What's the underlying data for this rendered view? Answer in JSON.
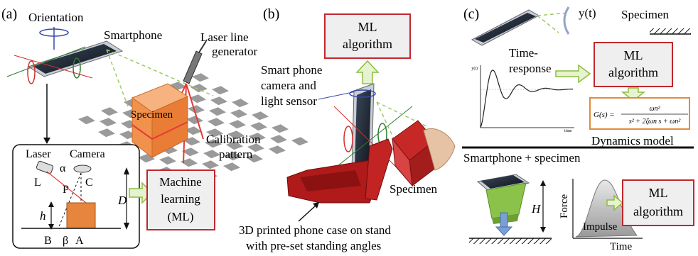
{
  "panel_a": {
    "label": "(a)",
    "orientation": "Orientation",
    "smartphone": "Smartphone",
    "laser_line_1": "Laser line",
    "laser_line_2": "generator",
    "specimen": "Specimen",
    "calibration_1": "Calibration",
    "calibration_2": "pattern",
    "inset": {
      "laser": "Laser",
      "camera": "Camera",
      "alpha": "α",
      "L": "L",
      "C": "C",
      "P": "P",
      "h": "h",
      "D": "D",
      "B": "B",
      "beta": "β",
      "A": "A"
    },
    "ml_box": [
      "Machine",
      "learning",
      "(ML)"
    ]
  },
  "panel_b": {
    "label": "(b)",
    "ml_box": [
      "ML",
      "algorithm"
    ],
    "camera_text": [
      "Smart phone",
      "camera and",
      "light sensor"
    ],
    "specimen": "Specimen",
    "caption": [
      "3D printed phone case on stand",
      "with pre-set standing angles"
    ]
  },
  "panel_c": {
    "label": "(c)",
    "yt": "y(t)",
    "specimen": "Specimen",
    "time_response": [
      "Time-",
      "response"
    ],
    "ml_box": [
      "ML",
      "algorithm"
    ],
    "transfer_function": "G(s) = ωn² / (s² + 2ζωn s + ωn²)",
    "tf_lhs": "G(s) =",
    "tf_num": "ωn²",
    "tf_den": "s² + 2ζωn s + ωn²",
    "dynamics_model": "Dynamics model",
    "plot_labels": {
      "y": "y(t)",
      "time": "time"
    }
  },
  "panel_d": {
    "title": "Smartphone + specimen",
    "H": "H",
    "force": "Force",
    "impulse": "Impulse",
    "time": "Time",
    "ml_box": [
      "ML",
      "algorithm"
    ]
  },
  "colors": {
    "box_border": "#c0272d",
    "box_fill": "#efefef",
    "arrow_fill": "#e6f2d0",
    "arrow_stroke": "#8cbd3f",
    "red_case": "#b01a1a",
    "specimen_orange": "#ef9a5a",
    "green_block": "#8bc34a"
  }
}
